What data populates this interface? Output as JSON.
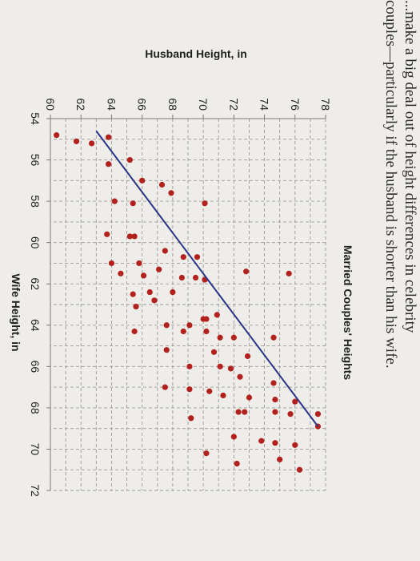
{
  "page_text": {
    "line1": "...make a big deal out of height differences in celebrity",
    "line2": "couples—particularly if the husband is shorter than his wife."
  },
  "chart_data": {
    "type": "scatter",
    "title": "Married Couples' Heights",
    "xlabel": "Wife Height, in",
    "ylabel": "Husband Height, in",
    "xlim": [
      54,
      72
    ],
    "ylim": [
      60,
      78
    ],
    "xticks": [
      "54",
      "56",
      "58",
      "60",
      "62",
      "64",
      "66",
      "68",
      "70",
      "72"
    ],
    "yticks": [
      "60",
      "62",
      "64",
      "66",
      "68",
      "70",
      "72",
      "74",
      "76",
      "78"
    ],
    "grid": true,
    "colors": {
      "points": "#b3211d",
      "fit_line": "#2a3585"
    },
    "fit_line": {
      "x": [
        54.6,
        68.9
      ],
      "y": [
        63.0,
        77.5
      ]
    },
    "points": [
      {
        "x": 54.8,
        "y": 60.4
      },
      {
        "x": 55.1,
        "y": 61.7
      },
      {
        "x": 55.2,
        "y": 62.7
      },
      {
        "x": 56.2,
        "y": 63.8
      },
      {
        "x": 54.9,
        "y": 63.8
      },
      {
        "x": 56.0,
        "y": 65.2
      },
      {
        "x": 57.0,
        "y": 66.0
      },
      {
        "x": 57.2,
        "y": 67.3
      },
      {
        "x": 57.6,
        "y": 67.9
      },
      {
        "x": 58.0,
        "y": 64.2
      },
      {
        "x": 58.1,
        "y": 65.4
      },
      {
        "x": 58.1,
        "y": 70.1
      },
      {
        "x": 59.6,
        "y": 63.7
      },
      {
        "x": 59.7,
        "y": 65.2
      },
      {
        "x": 59.7,
        "y": 65.5
      },
      {
        "x": 60.4,
        "y": 67.5
      },
      {
        "x": 60.7,
        "y": 68.7
      },
      {
        "x": 60.7,
        "y": 69.6
      },
      {
        "x": 61.0,
        "y": 64.0
      },
      {
        "x": 61.5,
        "y": 64.6
      },
      {
        "x": 61.0,
        "y": 65.8
      },
      {
        "x": 61.3,
        "y": 67.1
      },
      {
        "x": 61.6,
        "y": 66.1
      },
      {
        "x": 61.7,
        "y": 68.6
      },
      {
        "x": 61.7,
        "y": 69.5
      },
      {
        "x": 61.8,
        "y": 70.1
      },
      {
        "x": 61.4,
        "y": 72.8
      },
      {
        "x": 61.5,
        "y": 75.6
      },
      {
        "x": 62.5,
        "y": 65.4
      },
      {
        "x": 62.4,
        "y": 66.5
      },
      {
        "x": 62.8,
        "y": 66.8
      },
      {
        "x": 62.4,
        "y": 68.0
      },
      {
        "x": 63.5,
        "y": 70.9
      },
      {
        "x": 63.7,
        "y": 70.2
      },
      {
        "x": 63.7,
        "y": 70.0
      },
      {
        "x": 64.3,
        "y": 70.2
      },
      {
        "x": 63.1,
        "y": 65.6
      },
      {
        "x": 64.0,
        "y": 67.6
      },
      {
        "x": 64.0,
        "y": 69.1
      },
      {
        "x": 64.3,
        "y": 65.5
      },
      {
        "x": 64.3,
        "y": 68.7
      },
      {
        "x": 64.6,
        "y": 71.1
      },
      {
        "x": 64.6,
        "y": 72.0
      },
      {
        "x": 64.6,
        "y": 74.6
      },
      {
        "x": 65.2,
        "y": 67.6
      },
      {
        "x": 65.3,
        "y": 70.7
      },
      {
        "x": 65.5,
        "y": 72.9
      },
      {
        "x": 66.0,
        "y": 69.1
      },
      {
        "x": 66.0,
        "y": 71.1
      },
      {
        "x": 66.1,
        "y": 71.8
      },
      {
        "x": 66.5,
        "y": 72.4
      },
      {
        "x": 66.8,
        "y": 74.6
      },
      {
        "x": 67.0,
        "y": 67.5
      },
      {
        "x": 67.1,
        "y": 69.1
      },
      {
        "x": 67.2,
        "y": 70.4
      },
      {
        "x": 67.4,
        "y": 71.3
      },
      {
        "x": 67.5,
        "y": 73.0
      },
      {
        "x": 67.6,
        "y": 74.7
      },
      {
        "x": 67.7,
        "y": 76.0
      },
      {
        "x": 68.2,
        "y": 72.3
      },
      {
        "x": 68.2,
        "y": 72.7
      },
      {
        "x": 68.2,
        "y": 74.7
      },
      {
        "x": 68.3,
        "y": 75.7
      },
      {
        "x": 68.3,
        "y": 77.5
      },
      {
        "x": 68.5,
        "y": 69.2
      },
      {
        "x": 68.9,
        "y": 77.5
      },
      {
        "x": 69.4,
        "y": 72.0
      },
      {
        "x": 69.6,
        "y": 73.8
      },
      {
        "x": 69.7,
        "y": 74.7
      },
      {
        "x": 69.8,
        "y": 76.0
      },
      {
        "x": 70.2,
        "y": 70.2
      },
      {
        "x": 70.7,
        "y": 72.2
      },
      {
        "x": 70.5,
        "y": 75.0
      },
      {
        "x": 71.0,
        "y": 76.3
      }
    ]
  }
}
